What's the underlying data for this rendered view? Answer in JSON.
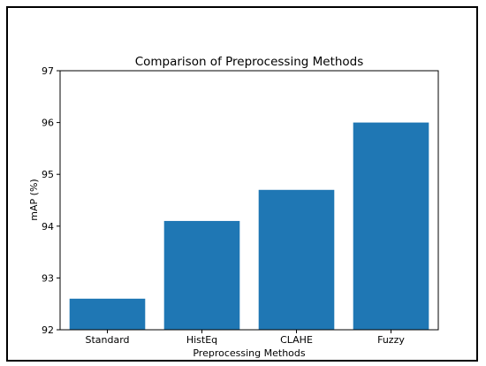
{
  "chart_data": {
    "type": "bar",
    "title": "Comparison of Preprocessing Methods",
    "xlabel": "Preprocessing Methods",
    "ylabel": "mAP (%)",
    "categories": [
      "Standard",
      "HistEq",
      "CLAHE",
      "Fuzzy"
    ],
    "values": [
      92.6,
      94.1,
      94.7,
      96.0
    ],
    "ylim": [
      92,
      97
    ],
    "yticks": [
      92,
      93,
      94,
      95,
      96,
      97
    ],
    "grid": false,
    "bar_color": "#1f77b4"
  }
}
